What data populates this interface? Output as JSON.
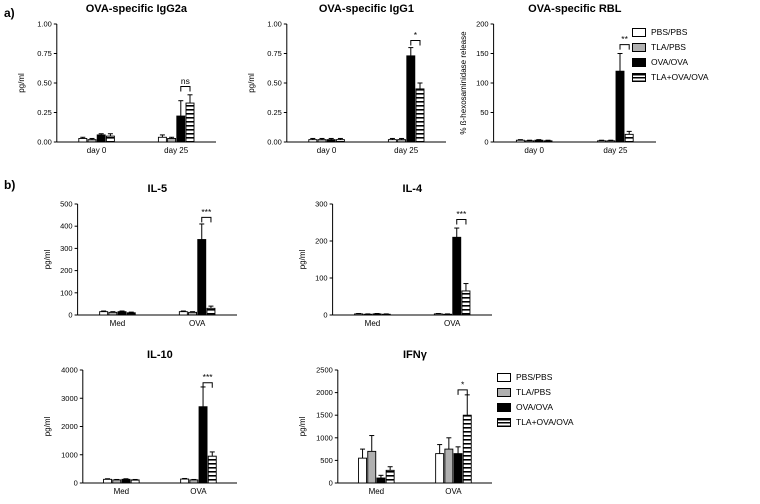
{
  "figure": {
    "panel_a_label": "a)",
    "panel_b_label": "b)"
  },
  "colors": {
    "gray": "#b0b0b0",
    "black": "#000000",
    "white": "#ffffff"
  },
  "legend": {
    "items": [
      {
        "label": "PBS/PBS",
        "fill": "white"
      },
      {
        "label": "TLA/PBS",
        "fill": "gray"
      },
      {
        "label": "OVA/OVA",
        "fill": "black"
      },
      {
        "label": "TLA+OVA/OVA",
        "fill": "stripes"
      }
    ]
  },
  "chart_data": [
    {
      "type": "bar",
      "panel": "a",
      "title": "OVA-specific IgG2a",
      "ylabel": "pg/ml",
      "ylim": [
        0,
        1.0
      ],
      "ytick_vals": [
        0,
        0.25,
        0.5,
        0.75,
        1.0
      ],
      "ytick_labels": [
        "0.00",
        "0.25",
        "0.50",
        "0.75",
        "1.00"
      ],
      "categories": [
        "day 0",
        "day 25"
      ],
      "series": [
        {
          "name": "PBS/PBS",
          "fill": "white",
          "values": [
            0.03,
            0.04
          ],
          "errors": [
            0.01,
            0.02
          ]
        },
        {
          "name": "TLA/PBS",
          "fill": "gray",
          "values": [
            0.02,
            0.03
          ],
          "errors": [
            0.01,
            0.01
          ]
        },
        {
          "name": "OVA/OVA",
          "fill": "black",
          "values": [
            0.06,
            0.22
          ],
          "errors": [
            0.01,
            0.13
          ]
        },
        {
          "name": "TLA+OVA/OVA",
          "fill": "stripes",
          "values": [
            0.05,
            0.33
          ],
          "errors": [
            0.02,
            0.07
          ]
        }
      ],
      "significance": {
        "label": "ns",
        "category_index": 1,
        "series_pair": [
          2,
          3
        ],
        "bracket_y": 0.47
      }
    },
    {
      "type": "bar",
      "panel": "a",
      "title": "OVA-specific IgG1",
      "ylabel": "pg/ml",
      "ylim": [
        0,
        1.0
      ],
      "ytick_vals": [
        0,
        0.25,
        0.5,
        0.75,
        1.0
      ],
      "ytick_labels": [
        "0.00",
        "0.25",
        "0.50",
        "0.75",
        "1.00"
      ],
      "categories": [
        "day 0",
        "day 25"
      ],
      "series": [
        {
          "name": "PBS/PBS",
          "fill": "white",
          "values": [
            0.02,
            0.02
          ],
          "errors": [
            0.01,
            0.01
          ]
        },
        {
          "name": "TLA/PBS",
          "fill": "gray",
          "values": [
            0.02,
            0.02
          ],
          "errors": [
            0.01,
            0.01
          ]
        },
        {
          "name": "OVA/OVA",
          "fill": "black",
          "values": [
            0.02,
            0.73
          ],
          "errors": [
            0.01,
            0.07
          ]
        },
        {
          "name": "TLA+OVA/OVA",
          "fill": "stripes",
          "values": [
            0.02,
            0.45
          ],
          "errors": [
            0.01,
            0.05
          ]
        }
      ],
      "significance": {
        "label": "*",
        "category_index": 1,
        "series_pair": [
          2,
          3
        ],
        "bracket_y": 0.86
      }
    },
    {
      "type": "bar",
      "panel": "a",
      "title": "OVA-specific RBL",
      "ylabel": "% ß-hexosaminidase release",
      "ylim": [
        0,
        200
      ],
      "ytick_vals": [
        0,
        50,
        100,
        150,
        200
      ],
      "ytick_labels": [
        "0",
        "50",
        "100",
        "150",
        "200"
      ],
      "categories": [
        "day 0",
        "day 25"
      ],
      "series": [
        {
          "name": "PBS/PBS",
          "fill": "white",
          "values": [
            3,
            2
          ],
          "errors": [
            1,
            1
          ]
        },
        {
          "name": "TLA/PBS",
          "fill": "gray",
          "values": [
            2,
            2
          ],
          "errors": [
            1,
            1
          ]
        },
        {
          "name": "OVA/OVA",
          "fill": "black",
          "values": [
            3,
            120
          ],
          "errors": [
            1,
            30
          ]
        },
        {
          "name": "TLA+OVA/OVA",
          "fill": "stripes",
          "values": [
            2,
            13
          ],
          "errors": [
            1,
            5
          ]
        }
      ],
      "significance": {
        "label": "**",
        "category_index": 1,
        "series_pair": [
          2,
          3
        ],
        "bracket_y": 165
      }
    },
    {
      "type": "bar",
      "panel": "b",
      "title": "IL-5",
      "ylabel": "pg/ml",
      "ylim": [
        0,
        500
      ],
      "ytick_vals": [
        0,
        100,
        200,
        300,
        400,
        500
      ],
      "ytick_labels": [
        "0",
        "100",
        "200",
        "300",
        "400",
        "500"
      ],
      "categories": [
        "Med",
        "OVA"
      ],
      "series": [
        {
          "name": "PBS/PBS",
          "fill": "white",
          "values": [
            15,
            15
          ],
          "errors": [
            3,
            3
          ]
        },
        {
          "name": "TLA/PBS",
          "fill": "gray",
          "values": [
            12,
            12
          ],
          "errors": [
            3,
            3
          ]
        },
        {
          "name": "OVA/OVA",
          "fill": "black",
          "values": [
            15,
            340
          ],
          "errors": [
            3,
            70
          ]
        },
        {
          "name": "TLA+OVA/OVA",
          "fill": "stripes",
          "values": [
            10,
            30
          ],
          "errors": [
            3,
            10
          ]
        }
      ],
      "significance": {
        "label": "***",
        "category_index": 1,
        "series_pair": [
          2,
          3
        ],
        "bracket_y": 440
      }
    },
    {
      "type": "bar",
      "panel": "b",
      "title": "IL-4",
      "ylabel": "pg/ml",
      "ylim": [
        0,
        300
      ],
      "ytick_vals": [
        0,
        100,
        200,
        300
      ],
      "ytick_labels": [
        "0",
        "100",
        "200",
        "300"
      ],
      "categories": [
        "Med",
        "OVA"
      ],
      "series": [
        {
          "name": "PBS/PBS",
          "fill": "white",
          "values": [
            3,
            3
          ],
          "errors": [
            1,
            1
          ]
        },
        {
          "name": "TLA/PBS",
          "fill": "gray",
          "values": [
            2,
            2
          ],
          "errors": [
            1,
            1
          ]
        },
        {
          "name": "OVA/OVA",
          "fill": "black",
          "values": [
            3,
            210
          ],
          "errors": [
            1,
            25
          ]
        },
        {
          "name": "TLA+OVA/OVA",
          "fill": "stripes",
          "values": [
            2,
            65
          ],
          "errors": [
            1,
            20
          ]
        }
      ],
      "significance": {
        "label": "***",
        "category_index": 1,
        "series_pair": [
          2,
          3
        ],
        "bracket_y": 258
      }
    },
    {
      "type": "bar",
      "panel": "b",
      "title": "IL-10",
      "ylabel": "pg/ml",
      "ylim": [
        0,
        4000
      ],
      "ytick_vals": [
        0,
        1000,
        2000,
        3000,
        4000
      ],
      "ytick_labels": [
        "0",
        "1000",
        "2000",
        "3000",
        "4000"
      ],
      "categories": [
        "Med",
        "OVA"
      ],
      "series": [
        {
          "name": "PBS/PBS",
          "fill": "white",
          "values": [
            130,
            140
          ],
          "errors": [
            20,
            20
          ]
        },
        {
          "name": "TLA/PBS",
          "fill": "gray",
          "values": [
            110,
            110
          ],
          "errors": [
            15,
            15
          ]
        },
        {
          "name": "OVA/OVA",
          "fill": "black",
          "values": [
            130,
            2700
          ],
          "errors": [
            20,
            700
          ]
        },
        {
          "name": "TLA+OVA/OVA",
          "fill": "stripes",
          "values": [
            110,
            950
          ],
          "errors": [
            15,
            150
          ]
        }
      ],
      "significance": {
        "label": "***",
        "category_index": 1,
        "series_pair": [
          2,
          3
        ],
        "bracket_y": 3550
      }
    },
    {
      "type": "bar",
      "panel": "b",
      "title": "IFNγ",
      "ylabel": "pg/ml",
      "ylim": [
        0,
        2500
      ],
      "ytick_vals": [
        0,
        500,
        1000,
        1500,
        2000,
        2500
      ],
      "ytick_labels": [
        "0",
        "500",
        "1000",
        "1500",
        "2000",
        "2500"
      ],
      "categories": [
        "Med",
        "OVA"
      ],
      "series": [
        {
          "name": "PBS/PBS",
          "fill": "white",
          "values": [
            550,
            650
          ],
          "errors": [
            200,
            200
          ]
        },
        {
          "name": "TLA/PBS",
          "fill": "gray",
          "values": [
            700,
            750
          ],
          "errors": [
            350,
            250
          ]
        },
        {
          "name": "OVA/OVA",
          "fill": "black",
          "values": [
            110,
            650
          ],
          "errors": [
            60,
            150
          ]
        },
        {
          "name": "TLA+OVA/OVA",
          "fill": "stripes",
          "values": [
            280,
            1500
          ],
          "errors": [
            80,
            450
          ]
        }
      ],
      "significance": {
        "label": "*",
        "category_index": 1,
        "series_pair": [
          2,
          3
        ],
        "bracket_y": 2060
      }
    }
  ]
}
